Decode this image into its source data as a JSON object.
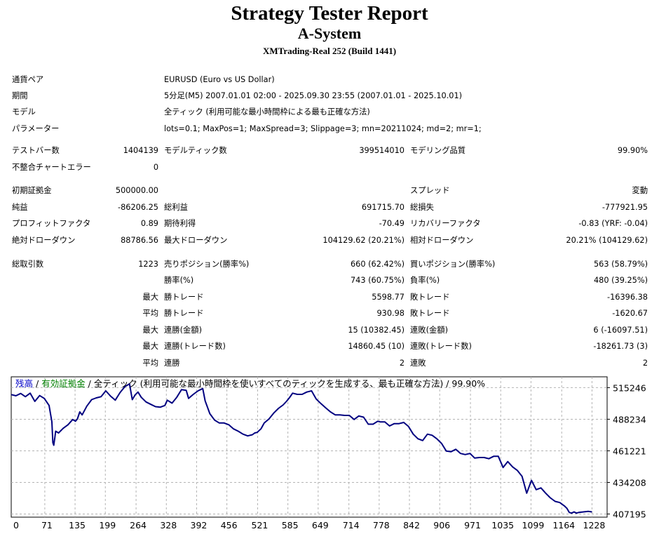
{
  "report": {
    "title": "Strategy Tester Report",
    "ea_name": "A-System",
    "server": "XMTrading-Real 252 (Build 1441)"
  },
  "settings": {
    "symbol_label": "通貨ペア",
    "symbol_value": "EURUSD (Euro vs US Dollar)",
    "period_label": "期間",
    "period_value": "5分足(M5) 2007.01.01 02:00 - 2025.09.30 23:55 (2007.01.01 - 2025.10.01)",
    "model_label": "モデル",
    "model_value": "全ティック (利用可能な最小時間枠による最も正確な方法)",
    "params_label": "パラメーター",
    "params_value": "lots=0.1; MaxPos=1; MaxSpread=3; Slippage=3; mn=20211024; md=2; mr=1;"
  },
  "stats": {
    "bars_label": "テストバー数",
    "bars_value": "1404139",
    "ticks_label": "モデルティック数",
    "ticks_value": "399514010",
    "quality_label": "モデリング品質",
    "quality_value": "99.90%",
    "mismatch_label": "不整合チャートエラー",
    "mismatch_value": "0",
    "deposit_label": "初期証拠金",
    "deposit_value": "500000.00",
    "spread_label": "スプレッド",
    "spread_value": "変動",
    "net_label": "純益",
    "net_value": "-86206.25",
    "gross_profit_label": "総利益",
    "gross_profit_value": "691715.70",
    "gross_loss_label": "総損失",
    "gross_loss_value": "-777921.95",
    "pf_label": "プロフィットファクタ",
    "pf_value": "0.89",
    "expected_label": "期待利得",
    "expected_value": "-70.49",
    "recovery_label": "リカバリーファクタ",
    "recovery_value": "-0.83 (YRF: -0.04)",
    "abs_dd_label": "絶対ドローダウン",
    "abs_dd_value": "88786.56",
    "max_dd_label": "最大ドローダウン",
    "max_dd_value": "104129.62 (20.21%)",
    "rel_dd_label": "相対ドローダウン",
    "rel_dd_value": "20.21% (104129.62)"
  },
  "trades": {
    "total_label": "総取引数",
    "total_value": "1223",
    "short_label": "売りポジション(勝率%)",
    "short_value": "660 (62.42%)",
    "long_label": "買いポジション(勝率%)",
    "long_value": "563 (58.79%)",
    "win_pct_label": "勝率(%)",
    "win_pct_value": "743 (60.75%)",
    "loss_pct_label": "負率(%)",
    "loss_pct_value": "480 (39.25%)",
    "max_prefix": "最大",
    "avg_prefix": "平均",
    "largest_win_label": "勝トレード",
    "largest_win_value": "5598.77",
    "largest_loss_label": "敗トレード",
    "largest_loss_value": "-16396.38",
    "avg_win_label": "勝トレード",
    "avg_win_value": "930.98",
    "avg_loss_label": "敗トレード",
    "avg_loss_value": "-1620.67",
    "max_consec_wins_label": "連勝(金額)",
    "max_consec_wins_value": "15 (10382.45)",
    "max_consec_losses_label": "連敗(金額)",
    "max_consec_losses_value": "6 (-16097.51)",
    "max_consec_profit_label": "連勝(トレード数)",
    "max_consec_profit_value": "14860.45 (10)",
    "max_consec_loss_label": "連敗(トレード数)",
    "max_consec_loss_value": "-18261.73 (3)",
    "avg_consec_wins_label": "連勝",
    "avg_consec_wins_value": "2",
    "avg_consec_losses_label": "連敗",
    "avg_consec_losses_value": "2"
  },
  "chart_legend": {
    "balance": "残高",
    "sep1": " / ",
    "equity": "有効証拠金",
    "rest": " / 全ティック (利用可能な最小時間枠を使いすべてのティックを生成する、最も正確な方法) / 99.90%"
  },
  "chart_data": {
    "type": "line",
    "title": "",
    "xlabel": "",
    "ylabel": "",
    "xlim": [
      0,
      1260
    ],
    "ylim": [
      404500,
      524500
    ],
    "x_ticks": [
      0,
      71,
      135,
      199,
      264,
      328,
      392,
      456,
      521,
      585,
      649,
      714,
      778,
      842,
      906,
      971,
      1035,
      1099,
      1164,
      1228
    ],
    "y_ticks": [
      515246,
      488234,
      461221,
      434208,
      407195
    ],
    "grid": true,
    "line_color": "#000080",
    "series": [
      {
        "x": [
          0,
          10,
          20,
          30,
          40,
          50,
          60,
          70,
          75,
          80,
          86,
          88,
          90,
          92,
          94,
          100,
          110,
          120,
          130,
          136,
          140,
          145,
          150,
          160,
          170,
          180,
          190,
          200,
          210,
          220,
          230,
          240,
          250,
          256,
          262,
          268,
          275,
          285,
          295,
          305,
          315,
          325,
          330,
          340,
          350,
          360,
          370,
          375,
          385,
          395,
          405,
          410,
          420,
          430,
          440,
          450,
          460,
          470,
          480,
          490,
          500,
          510,
          515,
          520,
          528,
          535,
          545,
          555,
          565,
          575,
          582,
          588,
          595,
          605,
          615,
          625,
          635,
          645,
          655,
          665,
          675,
          685,
          695,
          705,
          715,
          725,
          735,
          745,
          755,
          765,
          775,
          780,
          790,
          800,
          810,
          820,
          830,
          840,
          850,
          860,
          870,
          880,
          890,
          900,
          910,
          920,
          930,
          940,
          950,
          960,
          970,
          980,
          990,
          1000,
          1010,
          1020,
          1030,
          1040,
          1050,
          1060,
          1070,
          1080,
          1090,
          1100,
          1110,
          1120,
          1130,
          1140,
          1150,
          1160,
          1170,
          1175,
          1180,
          1185,
          1190,
          1195,
          1200,
          1210,
          1220,
          1228
        ],
        "y": [
          509300,
          508300,
          510300,
          507500,
          510500,
          503500,
          508500,
          506000,
          503000,
          500000,
          486000,
          468200,
          466000,
          472000,
          478000,
          476500,
          480500,
          483500,
          488000,
          486500,
          488500,
          494500,
          492000,
          499500,
          505000,
          506500,
          507500,
          512500,
          508000,
          504500,
          511000,
          516000,
          518500,
          505000,
          509000,
          511500,
          507000,
          503000,
          501000,
          499000,
          498500,
          500000,
          504500,
          502000,
          507000,
          513500,
          513000,
          506000,
          509500,
          512500,
          514500,
          504000,
          493000,
          487500,
          485000,
          485000,
          483500,
          480000,
          478000,
          475500,
          474000,
          475000,
          476500,
          477000,
          480000,
          485000,
          488500,
          493500,
          497500,
          500500,
          503500,
          506500,
          510500,
          509500,
          509500,
          511500,
          512500,
          505500,
          501500,
          498000,
          494500,
          492000,
          492000,
          491500,
          491500,
          488000,
          491000,
          490000,
          484000,
          484000,
          486500,
          486000,
          486000,
          482500,
          484500,
          484500,
          485500,
          482000,
          475500,
          471500,
          470000,
          475500,
          474500,
          471500,
          467500,
          461000,
          460500,
          462500,
          459000,
          458000,
          459000,
          455000,
          455500,
          455500,
          454500,
          456500,
          456500,
          447000,
          452000,
          447500,
          444500,
          439500,
          425000,
          436000,
          428000,
          429500,
          425000,
          421000,
          418000,
          417000,
          414000,
          412000,
          408500,
          408000,
          409000,
          408000,
          408500,
          409000,
          409500,
          409000
        ]
      }
    ]
  }
}
